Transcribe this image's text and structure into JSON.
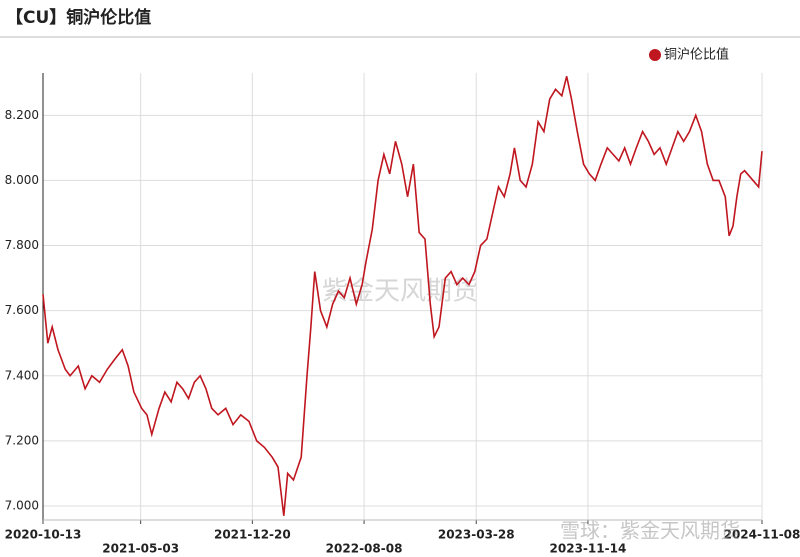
{
  "chart_data": {
    "type": "line",
    "title": "【CU】铜沪伦比值",
    "watermarks": [
      "紫金天风期货",
      "雪球：紫金天风期货"
    ],
    "legend": "top-right",
    "grid": true,
    "xlim": [
      "2020-10-13",
      "2024-11-08"
    ],
    "xticks": [
      "2020-10-13",
      "2021-05-03",
      "2021-12-20",
      "2022-08-08",
      "2023-03-28",
      "2023-11-14",
      "2024-11-08"
    ],
    "ylim": [
      6.957,
      8.33
    ],
    "yticks": [
      {
        "value": 7,
        "label": "7.000"
      },
      {
        "value": 7.2,
        "label": "7.200"
      },
      {
        "value": 7.4,
        "label": "7.400"
      },
      {
        "value": 7.6,
        "label": "7.600"
      },
      {
        "value": 7.8,
        "label": "7.800"
      },
      {
        "value": 8,
        "label": "8.000"
      },
      {
        "value": 8.2,
        "label": "8.200"
      }
    ],
    "x": [
      "2020-10-13",
      "2020-10-23",
      "2020-11-01",
      "2020-11-13",
      "2020-11-28",
      "2020-12-08",
      "2020-12-25",
      "2021-01-08",
      "2021-01-22",
      "2021-02-07",
      "2021-02-23",
      "2021-03-10",
      "2021-03-26",
      "2021-04-07",
      "2021-04-19",
      "2021-05-05",
      "2021-05-16",
      "2021-05-26",
      "2021-06-10",
      "2021-06-22",
      "2021-07-05",
      "2021-07-17",
      "2021-07-29",
      "2021-08-10",
      "2021-08-22",
      "2021-09-03",
      "2021-09-15",
      "2021-09-27",
      "2021-10-10",
      "2021-10-26",
      "2021-11-10",
      "2021-11-26",
      "2021-12-13",
      "2021-12-29",
      "2022-01-14",
      "2022-01-30",
      "2022-02-11",
      "2022-02-23",
      "2022-03-03",
      "2022-03-15",
      "2022-03-31",
      "2022-04-12",
      "2022-04-20",
      "2022-04-28",
      "2022-05-10",
      "2022-05-23",
      "2022-06-04",
      "2022-06-16",
      "2022-06-28",
      "2022-07-10",
      "2022-07-23",
      "2022-08-04",
      "2022-08-12",
      "2022-08-25",
      "2022-09-06",
      "2022-09-18",
      "2022-09-30",
      "2022-10-12",
      "2022-10-25",
      "2022-11-06",
      "2022-11-18",
      "2022-11-30",
      "2022-12-12",
      "2022-12-23",
      "2022-12-31",
      "2023-01-10",
      "2023-01-23",
      "2023-02-04",
      "2023-02-16",
      "2023-02-28",
      "2023-03-13",
      "2023-03-25",
      "2023-04-06",
      "2023-04-19",
      "2023-05-01",
      "2023-05-13",
      "2023-05-25",
      "2023-06-06",
      "2023-06-15",
      "2023-06-27",
      "2023-07-09",
      "2023-07-22",
      "2023-08-03",
      "2023-08-15",
      "2023-08-27",
      "2023-09-08",
      "2023-09-21",
      "2023-10-01",
      "2023-10-11",
      "2023-10-23",
      "2023-11-05",
      "2023-11-17",
      "2023-11-29",
      "2023-12-11",
      "2023-12-24",
      "2024-01-05",
      "2024-01-17",
      "2024-01-29",
      "2024-02-10",
      "2024-02-22",
      "2024-03-06",
      "2024-03-18",
      "2024-03-30",
      "2024-04-11",
      "2024-04-24",
      "2024-05-06",
      "2024-05-18",
      "2024-05-30",
      "2024-06-11",
      "2024-06-24",
      "2024-07-06",
      "2024-07-18",
      "2024-07-30",
      "2024-08-11",
      "2024-08-24",
      "2024-09-01",
      "2024-09-09",
      "2024-09-17",
      "2024-09-25",
      "2024-10-03",
      "2024-11-01",
      "2024-11-08"
    ],
    "series": [
      {
        "name": "铜沪伦比值",
        "color": "#c0161f",
        "values": [
          7.65,
          7.5,
          7.55,
          7.48,
          7.42,
          7.4,
          7.43,
          7.36,
          7.4,
          7.38,
          7.42,
          7.45,
          7.48,
          7.43,
          7.35,
          7.3,
          7.28,
          7.22,
          7.3,
          7.35,
          7.32,
          7.38,
          7.36,
          7.33,
          7.38,
          7.4,
          7.36,
          7.3,
          7.28,
          7.3,
          7.25,
          7.28,
          7.26,
          7.2,
          7.18,
          7.15,
          7.12,
          6.97,
          7.1,
          7.08,
          7.15,
          7.4,
          7.55,
          7.72,
          7.6,
          7.55,
          7.62,
          7.66,
          7.64,
          7.7,
          7.62,
          7.68,
          7.75,
          7.85,
          8.0,
          8.08,
          8.02,
          8.12,
          8.05,
          7.95,
          8.05,
          7.84,
          7.82,
          7.62,
          7.52,
          7.55,
          7.7,
          7.72,
          7.68,
          7.7,
          7.68,
          7.72,
          7.8,
          7.82,
          7.9,
          7.98,
          7.95,
          8.02,
          8.1,
          8.0,
          7.98,
          8.05,
          8.18,
          8.15,
          8.25,
          8.28,
          8.26,
          8.32,
          8.25,
          8.15,
          8.05,
          8.02,
          8.0,
          8.05,
          8.1,
          8.08,
          8.06,
          8.1,
          8.05,
          8.1,
          8.15,
          8.12,
          8.08,
          8.1,
          8.05,
          8.1,
          8.15,
          8.12,
          8.15,
          8.2,
          8.15,
          8.05,
          8.0,
          8.0,
          7.95,
          7.83,
          7.86,
          7.95,
          8.02,
          8.03,
          7.98,
          8.09
        ]
      }
    ]
  }
}
